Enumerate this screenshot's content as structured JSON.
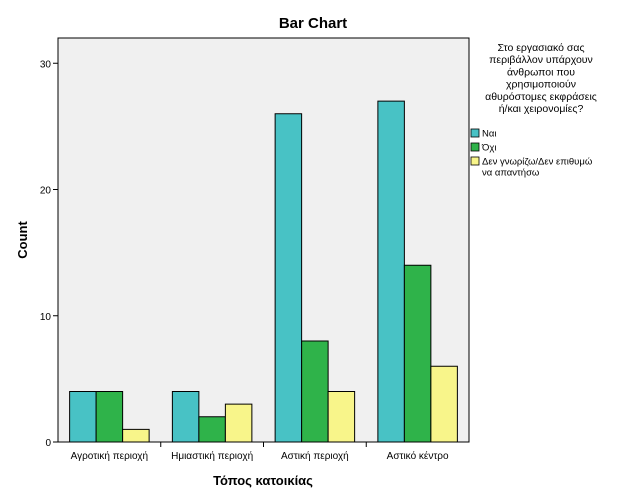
{
  "chart_data": {
    "type": "bar",
    "title": "Bar Chart",
    "xlabel": "Τόπος κατοικίας",
    "ylabel": "Count",
    "ylim": [
      0,
      32
    ],
    "yticks": [
      0,
      10,
      20,
      30
    ],
    "categories": [
      "Αγροτική περιοχή",
      "Ημιαστική περιοχή",
      "Αστική περιοχή",
      "Αστικό κέντρο"
    ],
    "legend_title": [
      "Στο εργασιακό σας",
      "περιβάλλον υπάρχουν",
      "άνθρωποι που",
      "χρησιμοποιούν",
      "αθυρόστομες εκφράσεις",
      "ή/και χειρονομίες?"
    ],
    "legend_position": "right",
    "series": [
      {
        "name": "Ναι",
        "color": "#48c2c5",
        "values": [
          4,
          4,
          26,
          27
        ]
      },
      {
        "name": "Όχι",
        "color": "#2fb34a",
        "values": [
          4,
          2,
          8,
          14
        ]
      },
      {
        "name": [
          "Δεν γνωρίζω/Δεν επιθυμώ",
          "να απαντήσω"
        ],
        "color": "#f8f58a",
        "values": [
          1,
          3,
          4,
          6
        ]
      }
    ],
    "plot_background": "#f0f0f0"
  }
}
